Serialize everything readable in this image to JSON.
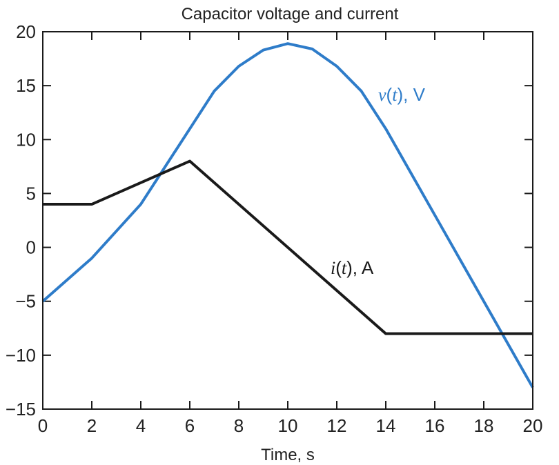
{
  "chart_data": {
    "type": "line",
    "title": "Capacitor voltage and current",
    "xlabel": "Time, s",
    "ylabel": "",
    "xlim": [
      0,
      20
    ],
    "ylim": [
      -15,
      20
    ],
    "xticks": [
      0,
      2,
      4,
      6,
      8,
      10,
      12,
      14,
      16,
      18,
      20
    ],
    "yticks": [
      -15,
      -10,
      -5,
      0,
      5,
      10,
      15,
      20
    ],
    "ytick_labels": [
      "−15",
      "−10",
      "−5",
      "0",
      "5",
      "10",
      "15",
      "20"
    ],
    "grid": false,
    "series": [
      {
        "key": "v",
        "label_func": "v",
        "label_arg": "t",
        "label_unit": "V",
        "color": "#2e7cc9",
        "x": [
          0,
          2,
          4,
          6,
          7,
          8,
          9,
          10,
          11,
          12,
          13,
          14,
          16,
          18,
          20
        ],
        "y": [
          -5,
          -1,
          4,
          11,
          14.5,
          16.8,
          18.3,
          18.9,
          18.4,
          16.8,
          14.5,
          11,
          3,
          -5,
          -13
        ]
      },
      {
        "key": "i",
        "label_func": "i",
        "label_arg": "t",
        "label_unit": "A",
        "color": "#1a1a1a",
        "x": [
          0,
          2,
          6,
          14,
          20
        ],
        "y": [
          4,
          4,
          8,
          -8,
          -8
        ]
      }
    ]
  }
}
